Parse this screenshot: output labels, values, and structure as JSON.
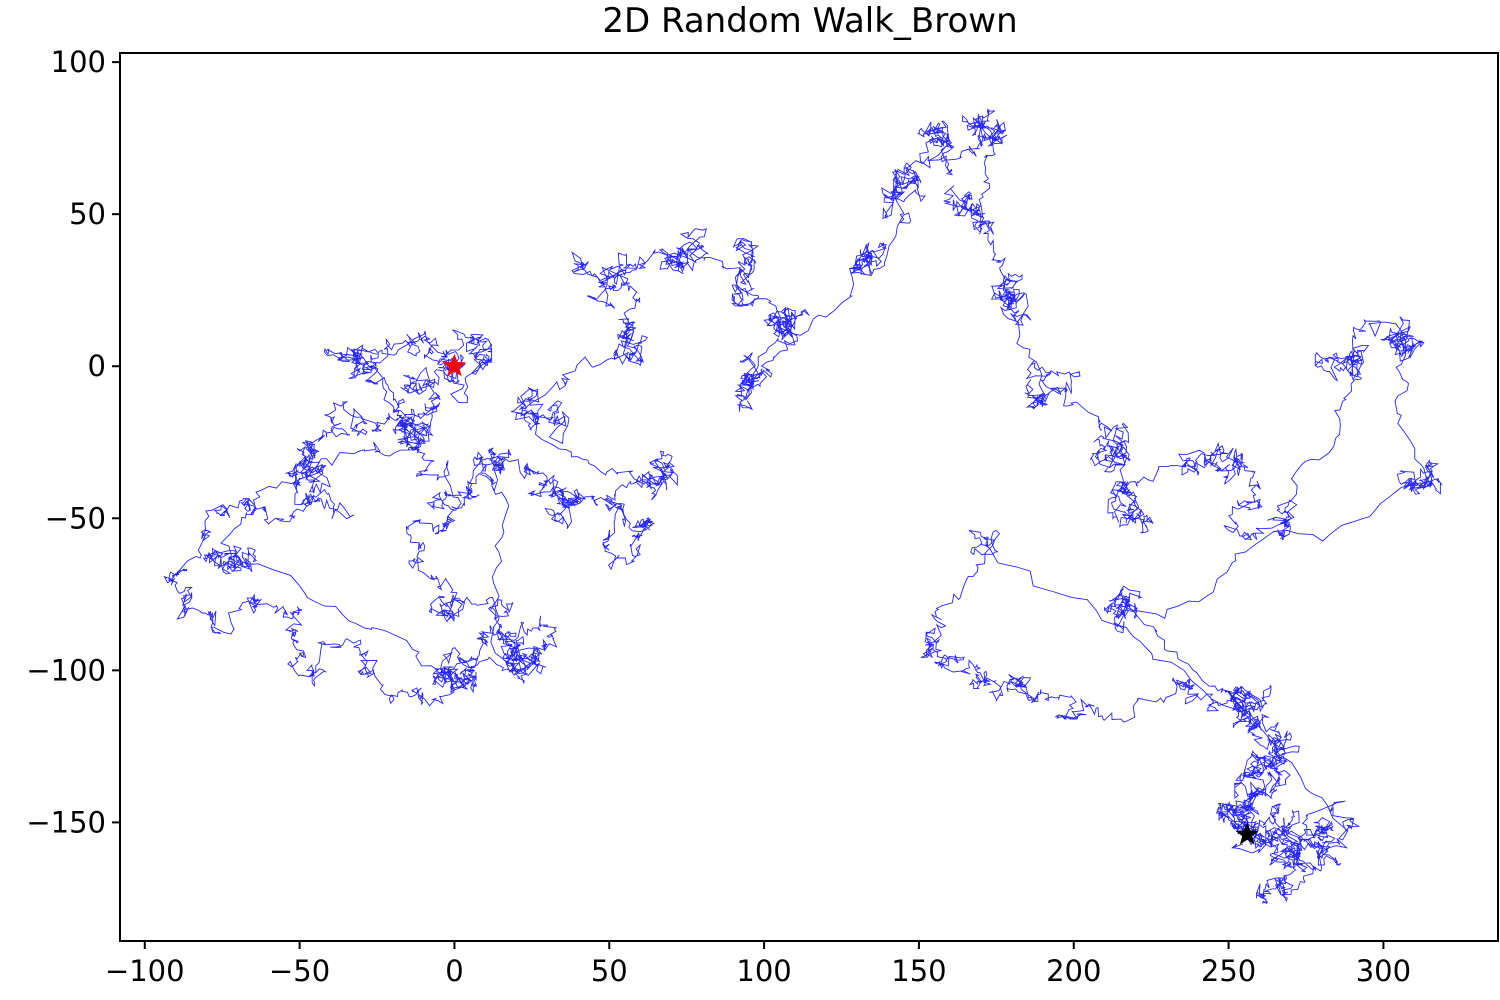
{
  "chart_data": {
    "type": "line",
    "title": "2D Random Walk_Brown",
    "xlabel": "",
    "ylabel": "",
    "xlim": [
      -108,
      337
    ],
    "ylim": [
      -189,
      103
    ],
    "xticks": [
      -100,
      -50,
      0,
      50,
      100,
      150,
      200,
      250,
      300
    ],
    "xtick_labels": [
      "−100",
      "−50",
      "0",
      "50",
      "100",
      "150",
      "200",
      "250",
      "300"
    ],
    "yticks": [
      100,
      50,
      0,
      -50,
      -100,
      -150
    ],
    "ytick_labels": [
      "100",
      "50",
      "0",
      "−50",
      "−100",
      "−150"
    ],
    "grid": false,
    "legend": "none",
    "series": [
      {
        "line_color": "#0000ff",
        "marker": "small cross",
        "path_waypoints": [
          [
            0,
            0
          ],
          [
            -15,
            8
          ],
          [
            -28,
            -5
          ],
          [
            -20,
            -18
          ],
          [
            -35,
            -15
          ],
          [
            -45,
            -25
          ],
          [
            -50,
            -40
          ],
          [
            -38,
            -48
          ],
          [
            -55,
            -50
          ],
          [
            -72,
            -48
          ],
          [
            -82,
            -62
          ],
          [
            -86,
            -72
          ],
          [
            -78,
            -82
          ],
          [
            -65,
            -78
          ],
          [
            -52,
            -88
          ],
          [
            -50,
            -100
          ],
          [
            -40,
            -92
          ],
          [
            -25,
            -98
          ],
          [
            -12,
            -110
          ],
          [
            -5,
            -102
          ],
          [
            5,
            -98
          ],
          [
            15,
            -90
          ],
          [
            22,
            -100
          ],
          [
            28,
            -92
          ],
          [
            22,
            -85
          ],
          [
            10,
            -78
          ],
          [
            0,
            -82
          ],
          [
            -5,
            -72
          ],
          [
            -12,
            -52
          ],
          [
            -5,
            -45
          ],
          [
            5,
            -42
          ],
          [
            -8,
            -35
          ],
          [
            -15,
            -25
          ],
          [
            -8,
            -15
          ],
          [
            -15,
            -5
          ],
          [
            0,
            0
          ]
        ],
        "cluster_centers": [
          [
            0,
            0
          ],
          [
            -30,
            5
          ],
          [
            -10,
            -20
          ],
          [
            -50,
            -30
          ],
          [
            -75,
            -65
          ],
          [
            -5,
            -100
          ],
          [
            20,
            -95
          ],
          [
            15,
            -30
          ],
          [
            35,
            -42
          ],
          [
            60,
            -55
          ],
          [
            65,
            -40
          ],
          [
            25,
            -15
          ],
          [
            55,
            5
          ],
          [
            50,
            30
          ],
          [
            70,
            35
          ],
          [
            95,
            30
          ],
          [
            110,
            15
          ],
          [
            95,
            -5
          ],
          [
            130,
            35
          ],
          [
            140,
            55
          ],
          [
            160,
            75
          ],
          [
            175,
            80
          ],
          [
            170,
            50
          ],
          [
            178,
            20
          ],
          [
            190,
            -10
          ],
          [
            215,
            -25
          ],
          [
            220,
            -50
          ],
          [
            245,
            -30
          ],
          [
            260,
            -45
          ],
          [
            290,
            0
          ],
          [
            305,
            10
          ],
          [
            310,
            -40
          ],
          [
            215,
            -80
          ],
          [
            255,
            -115
          ],
          [
            265,
            -130
          ],
          [
            255,
            -145
          ],
          [
            270,
            -160
          ],
          [
            280,
            -155
          ]
        ],
        "end_waypoints": [
          [
            170,
            -60
          ],
          [
            155,
            -90
          ],
          [
            165,
            -100
          ],
          [
            185,
            -105
          ],
          [
            200,
            -110
          ],
          [
            235,
            -105
          ],
          [
            255,
            -110
          ],
          [
            262,
            -125
          ],
          [
            258,
            -140
          ],
          [
            250,
            -150
          ],
          [
            262,
            -150
          ],
          [
            272,
            -162
          ],
          [
            265,
            -172
          ],
          [
            285,
            -158
          ],
          [
            256,
            -154
          ]
        ]
      }
    ],
    "markers": [
      {
        "label": "start",
        "x": 0,
        "y": 0,
        "symbol": "star",
        "color": "#ff0000"
      },
      {
        "label": "end",
        "x": 256,
        "y": -154,
        "symbol": "star",
        "color": "#000000"
      }
    ]
  }
}
